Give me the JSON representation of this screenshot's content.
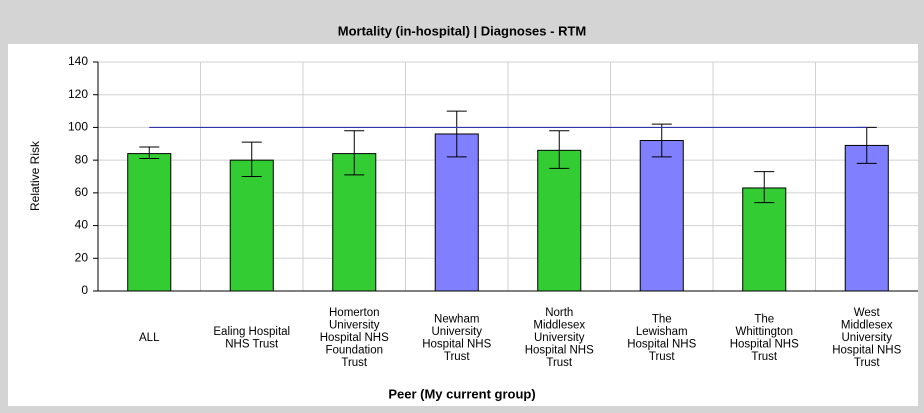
{
  "chart_data": {
    "type": "bar",
    "title": "Mortality (in-hospital) | Diagnoses - RTM",
    "x_label": "Peer (My current group)",
    "y_label": "Relative Risk",
    "categories": [
      [
        "ALL"
      ],
      [
        "Ealing Hospital",
        "NHS Trust"
      ],
      [
        "Homerton",
        "University",
        "Hospital NHS",
        "Foundation",
        "Trust"
      ],
      [
        "Newham",
        "University",
        "Hospital NHS",
        "Trust"
      ],
      [
        "North",
        "Middlesex",
        "University",
        "Hospital NHS",
        "Trust"
      ],
      [
        "The",
        "Lewisham",
        "Hospital NHS",
        "Trust"
      ],
      [
        "The",
        "Whittington",
        "Hospital NHS",
        "Trust"
      ],
      [
        "West",
        "Middlesex",
        "University",
        "Hospital NHS",
        "Trust"
      ]
    ],
    "values": [
      84,
      80,
      84,
      96,
      86,
      92,
      63,
      89
    ],
    "error_low": [
      81,
      70,
      71,
      82,
      75,
      82,
      54,
      78
    ],
    "error_high": [
      88,
      91,
      98,
      110,
      98,
      102,
      73,
      100
    ],
    "colors": [
      "#33cc33",
      "#33cc33",
      "#33cc33",
      "#8080ff",
      "#33cc33",
      "#8080ff",
      "#33cc33",
      "#8080ff"
    ],
    "reference_line": {
      "value": 100,
      "color": "#3333aa"
    },
    "ylim": [
      0,
      140
    ],
    "yticks": [
      0,
      20,
      40,
      60,
      80,
      100,
      120,
      140
    ],
    "grid": true
  }
}
